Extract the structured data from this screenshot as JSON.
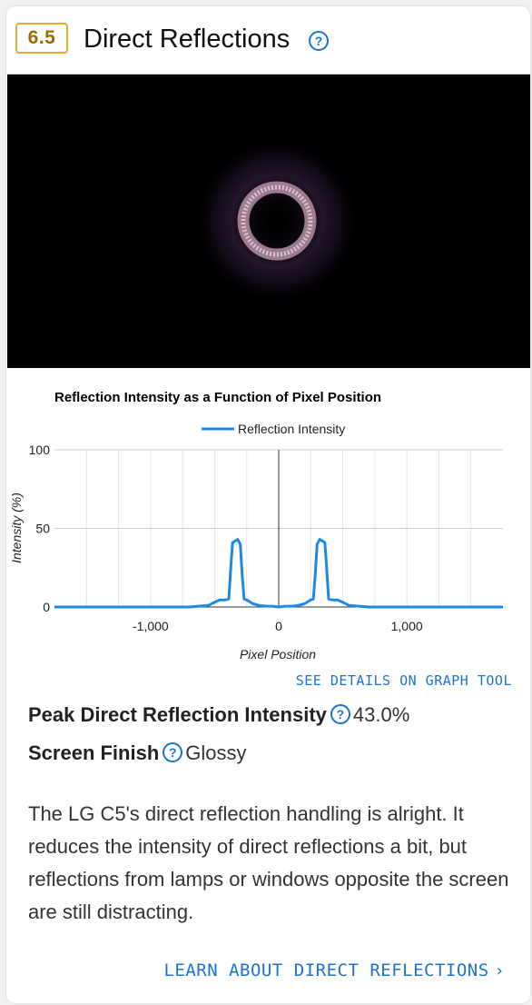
{
  "header": {
    "score": "6.5",
    "title": "Direct Reflections",
    "help_icon": "help-circle-icon"
  },
  "chart_data": {
    "type": "line",
    "title": "Reflection Intensity as a Function of Pixel Position",
    "xlabel": "Pixel Position",
    "ylabel": "Intensity (%)",
    "legend": "top-center",
    "xticks": [
      "-1,000",
      "0",
      "1,000"
    ],
    "yticks": [
      "0",
      "50",
      "100"
    ],
    "xlim": [
      -1750,
      1750
    ],
    "ylim": [
      0,
      100
    ],
    "grid": true,
    "series": [
      {
        "name": "Reflection Intensity",
        "color": "#1e88e5",
        "x": [
          -1750,
          -700,
          -550,
          -500,
          -460,
          -420,
          -390,
          -370,
          -360,
          -340,
          -320,
          -300,
          -285,
          -270,
          -250,
          -200,
          -150,
          -100,
          -50,
          0,
          50,
          100,
          150,
          200,
          250,
          270,
          285,
          300,
          320,
          340,
          360,
          370,
          390,
          420,
          460,
          500,
          550,
          700,
          1750
        ],
        "y": [
          0,
          0,
          1,
          3,
          4.5,
          4.5,
          5,
          30,
          41,
          42,
          43,
          40,
          20,
          5,
          4.5,
          2,
          1,
          0.5,
          0.5,
          0,
          0.5,
          0.5,
          1,
          2,
          4.5,
          5,
          20,
          40,
          43,
          42,
          41,
          30,
          5,
          4.5,
          4.5,
          3,
          1,
          0,
          0
        ]
      }
    ]
  },
  "graph_tool_link": "SEE DETAILS ON GRAPH TOOL",
  "metrics": [
    {
      "label": "Peak Direct Reflection Intensity",
      "value": "43.0%"
    },
    {
      "label": "Screen Finish",
      "value": "Glossy"
    }
  ],
  "description": "The LG C5's direct reflection handling is alright. It reduces the intensity of direct reflections a bit, but reflections from lamps or windows opposite the screen are still distracting.",
  "learn_link": "LEARN ABOUT DIRECT REFLECTIONS",
  "colors": {
    "accent": "#1d72d1",
    "score_border": "#e4ac2f",
    "score_text": "#9a6a00",
    "series": "#1e88e5"
  }
}
